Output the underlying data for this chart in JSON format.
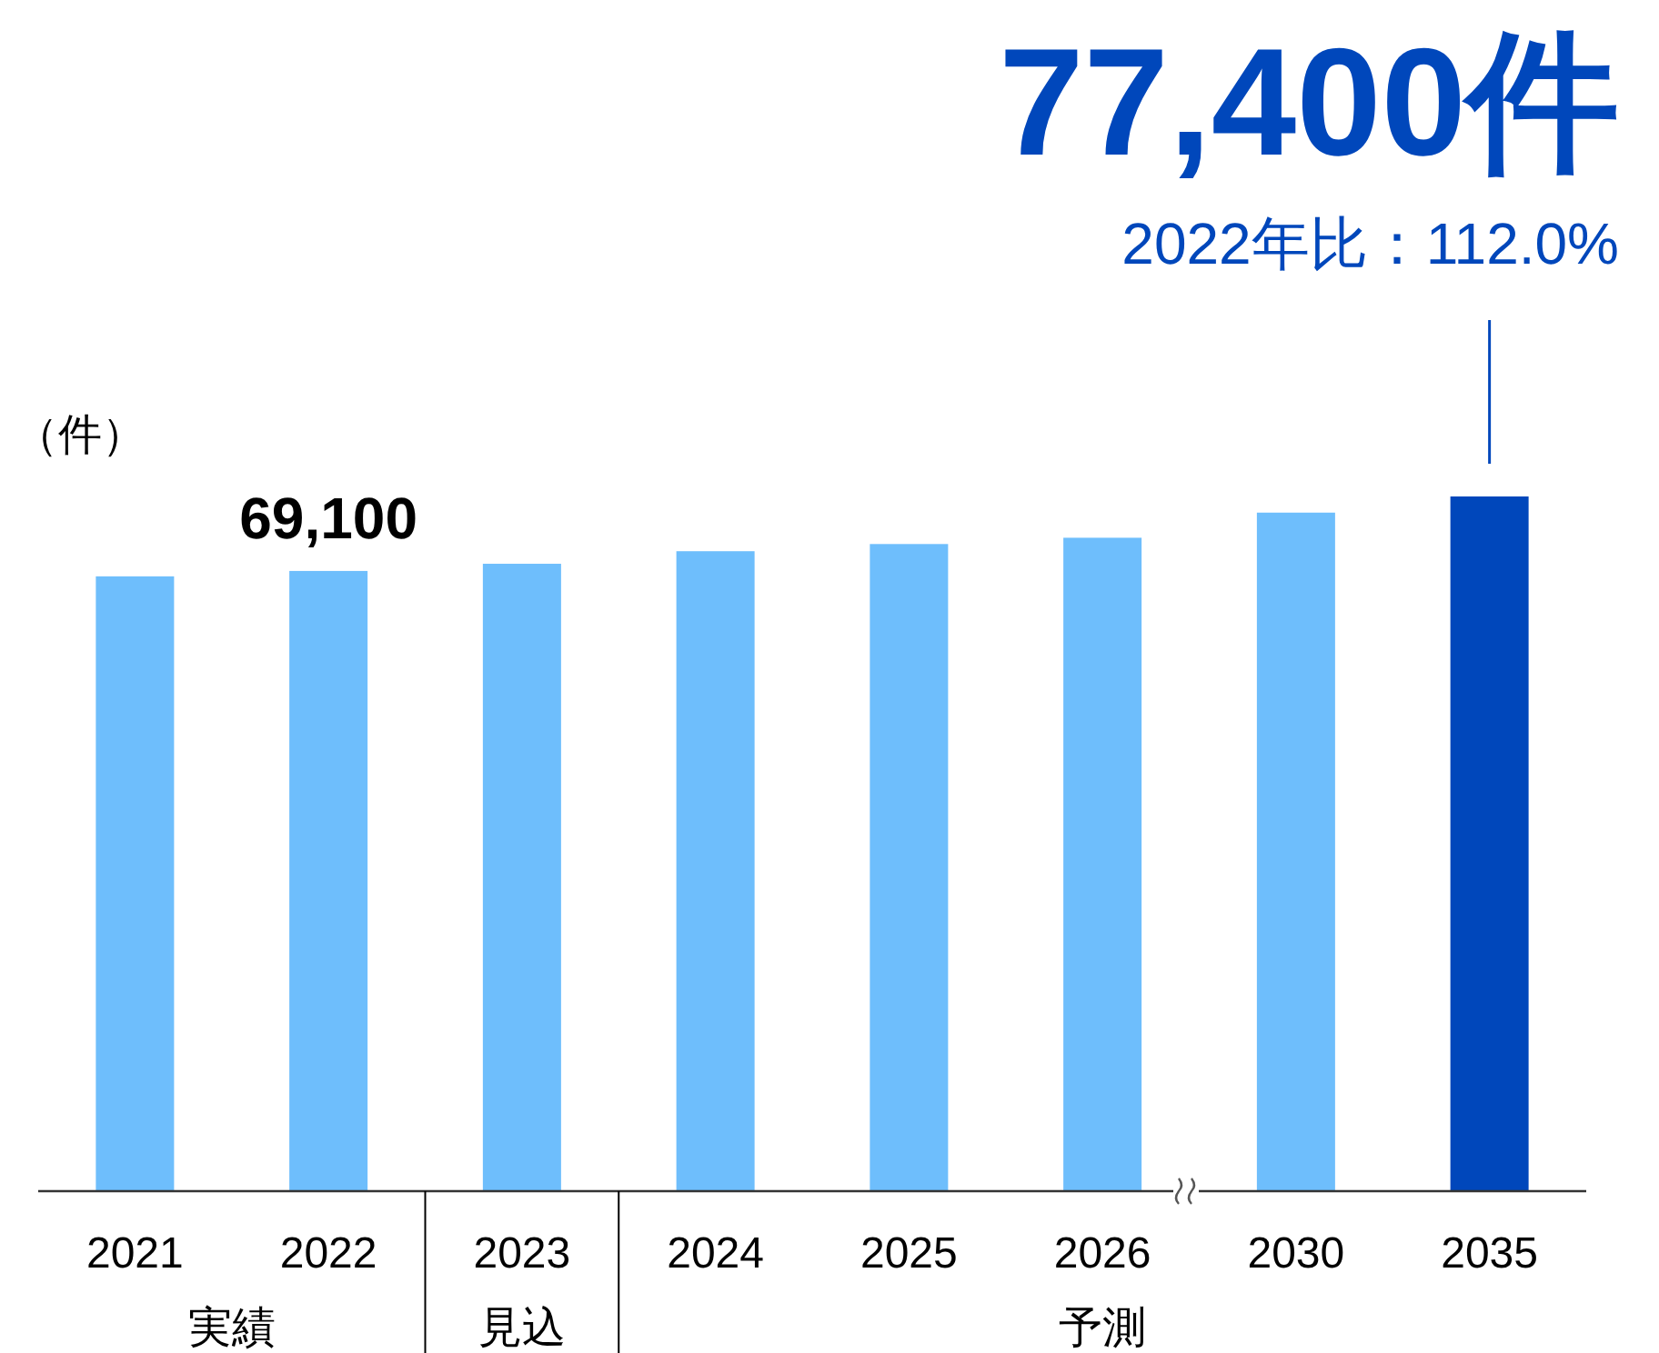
{
  "chart_data": {
    "type": "bar",
    "ylabel": "（件）",
    "categories": [
      "2021",
      "2022",
      "2023",
      "2024",
      "2025",
      "2026",
      "2030",
      "2035"
    ],
    "values": [
      68500,
      69100,
      69900,
      71300,
      72100,
      72800,
      75600,
      77400
    ],
    "colors": [
      "#6ebefc",
      "#6ebefc",
      "#6ebefc",
      "#6ebefc",
      "#6ebefc",
      "#6ebefc",
      "#6ebefc",
      "#0047bb"
    ],
    "value_labels": [
      null,
      "69,100",
      null,
      null,
      null,
      null,
      null,
      null
    ],
    "annotations": [
      "77,400件",
      "2022年比：112.0%",
      "実績",
      "見込",
      "予測"
    ]
  }
}
